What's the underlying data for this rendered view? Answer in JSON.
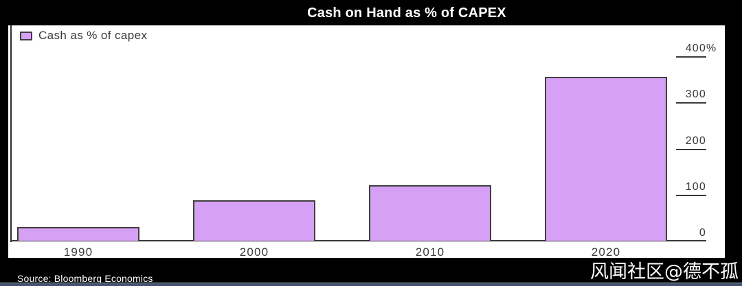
{
  "title": "Cash on Hand as % of CAPEX",
  "legend": {
    "label": "Cash as % of capex",
    "swatch_color": "#d6a0f5"
  },
  "footer": {
    "source": "Source: Bloomberg Economics",
    "watermark": "风闻社区@德不孤"
  },
  "colors": {
    "background": "#000000",
    "panel": "#ffffff",
    "bar_fill": "#d6a0f5",
    "bar_border": "#3f3f3f",
    "axis_text": "#3a3a3a",
    "title_text": "#ffffff",
    "bottom_strip": "#44516f"
  },
  "chart_data": {
    "type": "bar",
    "title": "Cash on Hand as % of CAPEX",
    "legend": [
      "Cash as % of capex"
    ],
    "legend_position": "top-left",
    "categories": [
      "1990",
      "2000",
      "2010",
      "2020"
    ],
    "values": [
      30,
      87,
      120,
      355
    ],
    "xlabel": "",
    "ylabel": "",
    "ylim": [
      0,
      400
    ],
    "yaxis_side": "right",
    "grid": false,
    "yticks": [
      {
        "value": 0,
        "label": "0",
        "suffix": ""
      },
      {
        "value": 100,
        "label": "100",
        "suffix": ""
      },
      {
        "value": 200,
        "label": "200",
        "suffix": ""
      },
      {
        "value": 300,
        "label": "300",
        "suffix": ""
      },
      {
        "value": 400,
        "label": "400",
        "suffix": "%"
      }
    ],
    "source": "Bloomberg Economics"
  }
}
